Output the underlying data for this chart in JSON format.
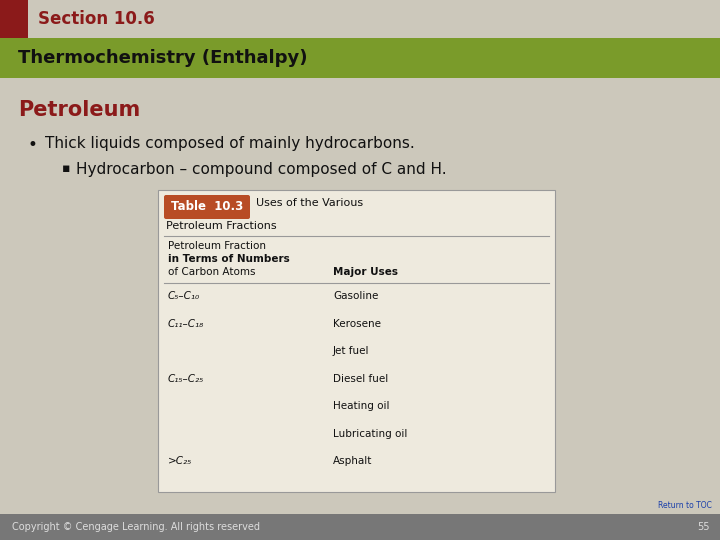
{
  "bg_color": "#ccc8bb",
  "section_bar_color": "#8b1a1a",
  "section_text": "Section 10.6",
  "section_text_color": "#8b1a1a",
  "subtitle_bar_color": "#7a9b2a",
  "subtitle_text": "Thermochemistry (Enthalpy)",
  "subtitle_text_color": "#111111",
  "topic_text": "Petroleum",
  "topic_color": "#8b1a1a",
  "bullet1": "Thick liquids composed of mainly hydrocarbons.",
  "bullet2": "Hydrocarbon – compound composed of C and H.",
  "table_title_bg": "#b84c25",
  "table_title_text_color": "#ffffff",
  "table_title_label": "Table  10.3",
  "table_subtitle_line1": "Uses of the Various",
  "table_subtitle_line2": "Petroleum Fractions",
  "table_col1_header_line1": "Petroleum Fraction",
  "table_col1_header_line2": "in Terms of Numbers",
  "table_col1_header_line3": "of Carbon Atoms",
  "table_col2_header": "Major Uses",
  "table_rows": [
    [
      "C₅–C₁₀",
      "Gasoline"
    ],
    [
      "C₁₁–C₁₈",
      "Kerosene"
    ],
    [
      "",
      "Jet fuel"
    ],
    [
      "C₁₅–C₂₅",
      "Diesel fuel"
    ],
    [
      "",
      "Heating oil"
    ],
    [
      "",
      "Lubricating oil"
    ],
    [
      ">C₂₅",
      "Asphalt"
    ]
  ],
  "table_bg": "#eeeade",
  "table_border_color": "#999999",
  "footer_bg": "#777777",
  "footer_text": "Copyright © Cengage Learning. All rights reserved",
  "footer_page": "55",
  "footer_link": "Return to TOC",
  "footer_link_color": "#1a3faa"
}
